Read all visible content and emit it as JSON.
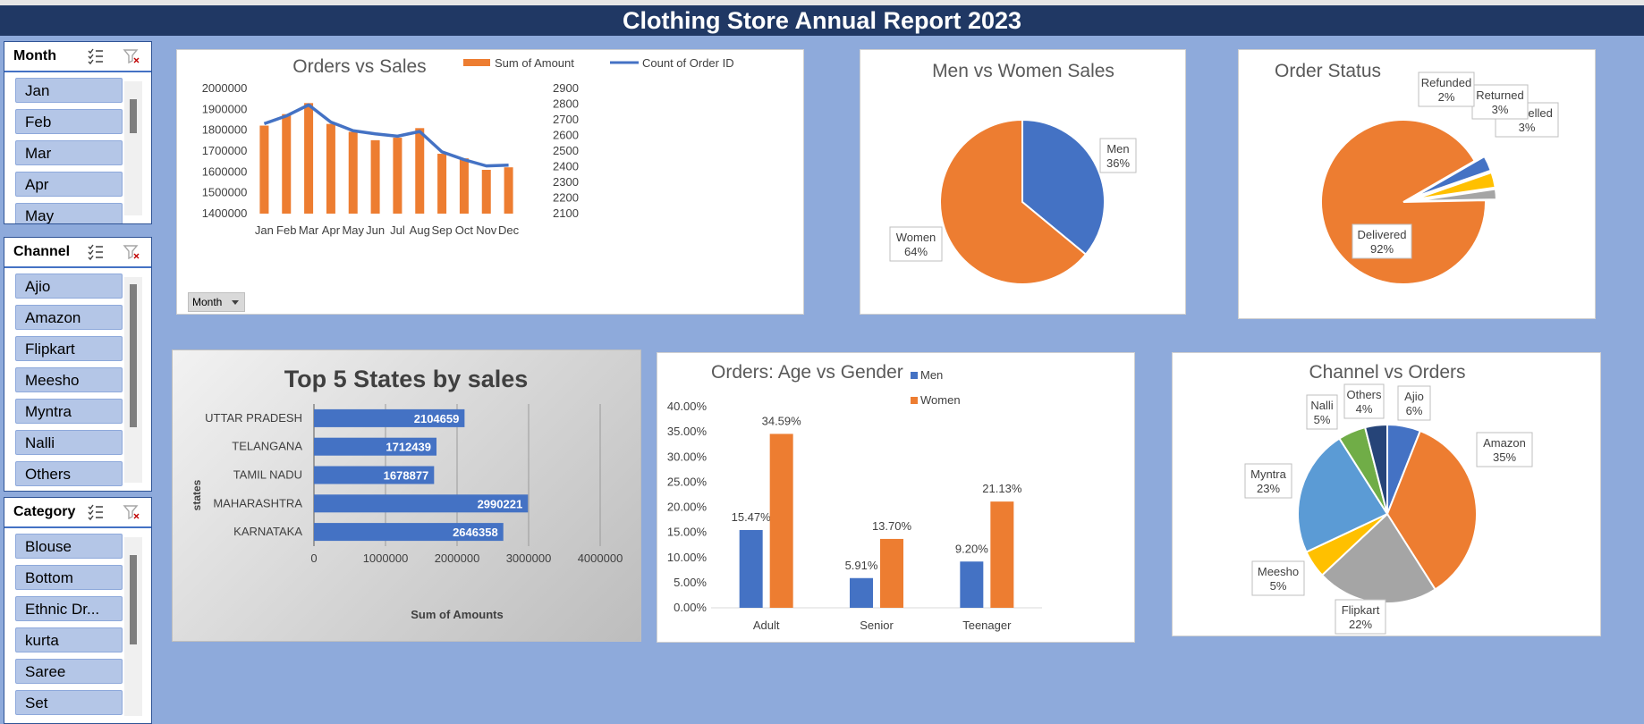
{
  "report": {
    "title": "Clothing Store Annual Report 2023"
  },
  "slicers": {
    "month": {
      "title": "Month",
      "items": [
        "Jan",
        "Feb",
        "Mar",
        "Apr",
        "May"
      ]
    },
    "channel": {
      "title": "Channel",
      "items": [
        "Ajio",
        "Amazon",
        "Flipkart",
        "Meesho",
        "Myntra",
        "Nalli",
        "Others"
      ]
    },
    "category": {
      "title": "Category",
      "items": [
        "Blouse",
        "Bottom",
        "Ethnic Dr...",
        "kurta",
        "Saree",
        "Set"
      ]
    }
  },
  "pivot_button": {
    "label": "Month"
  },
  "colors": {
    "orange": "#ed7d31",
    "blue": "#4472c4",
    "gray": "#a5a5a5",
    "yellow": "#ffc000",
    "lightblue": "#5b9bd5",
    "green": "#70ad47",
    "navy": "#264478",
    "banner": "#203864",
    "background": "#8eaadb"
  },
  "chart_data": [
    {
      "id": "orders_vs_sales",
      "type": "bar",
      "title": "Orders vs Sales",
      "categories": [
        "Jan",
        "Feb",
        "Mar",
        "Apr",
        "May",
        "Jun",
        "Jul",
        "Aug",
        "Sep",
        "Oct",
        "Nov",
        "Dec"
      ],
      "series": [
        {
          "name": "Sum of Amount",
          "type": "bar",
          "axis": "left",
          "values": [
            1822000,
            1877000,
            1930000,
            1830000,
            1792000,
            1752000,
            1764000,
            1810000,
            1687000,
            1665000,
            1610000,
            1622000
          ]
        },
        {
          "name": "Count of Order ID",
          "type": "line",
          "axis": "right",
          "values": [
            2675,
            2725,
            2795,
            2685,
            2630,
            2610,
            2595,
            2625,
            2495,
            2445,
            2405,
            2410
          ]
        }
      ],
      "ylim": [
        1400000,
        2000000
      ],
      "yticks": [
        "2000000",
        "1900000",
        "1800000",
        "1700000",
        "1600000",
        "1500000",
        "1400000"
      ],
      "y2lim": [
        2100,
        2900
      ],
      "y2ticks": [
        "2900",
        "2800",
        "2700",
        "2600",
        "2500",
        "2400",
        "2300",
        "2200",
        "2100"
      ],
      "legend": "top"
    },
    {
      "id": "men_vs_women",
      "type": "pie",
      "title": "Men vs Women Sales",
      "slices": [
        {
          "label": "Men",
          "value": 36,
          "pct": "36%"
        },
        {
          "label": "Women",
          "value": 64,
          "pct": "64%"
        }
      ]
    },
    {
      "id": "order_status",
      "type": "pie",
      "title": "Order Status",
      "slices": [
        {
          "label": "Cancelled",
          "value": 3,
          "pct": "3%"
        },
        {
          "label": "Returned",
          "value": 3,
          "pct": "3%"
        },
        {
          "label": "Refunded",
          "value": 2,
          "pct": "2%"
        },
        {
          "label": "Delivered",
          "value": 92,
          "pct": "92%"
        }
      ]
    },
    {
      "id": "top_states",
      "type": "bar",
      "orientation": "horizontal",
      "title": "Top 5 States by sales",
      "categories": [
        "UTTAR PRADESH",
        "TELANGANA",
        "TAMIL NADU",
        "MAHARASHTRA",
        "KARNATAKA"
      ],
      "values": [
        2104659,
        1712439,
        1678877,
        2990221,
        2646358
      ],
      "xlabel": "Sum of Amounts",
      "ylabel": "states",
      "xlim": [
        0,
        4000000
      ],
      "xticks": [
        "0",
        "1000000",
        "2000000",
        "3000000",
        "4000000"
      ]
    },
    {
      "id": "age_vs_gender",
      "type": "bar",
      "title": "Orders: Age vs Gender",
      "categories": [
        "Adult",
        "Senior",
        "Teenager"
      ],
      "series": [
        {
          "name": "Men",
          "values": [
            15.47,
            5.91,
            9.2
          ],
          "labels": [
            "15.47%",
            "5.91%",
            "9.20%"
          ]
        },
        {
          "name": "Women",
          "values": [
            34.59,
            13.7,
            21.13
          ],
          "labels": [
            "34.59%",
            "13.70%",
            "21.13%"
          ]
        }
      ],
      "ylim": [
        0,
        40
      ],
      "yticks": [
        "40.00%",
        "35.00%",
        "30.00%",
        "25.00%",
        "20.00%",
        "15.00%",
        "10.00%",
        "5.00%",
        "0.00%"
      ]
    },
    {
      "id": "channel_vs_orders",
      "type": "pie",
      "title": "Channel vs Orders",
      "slices": [
        {
          "label": "Ajio",
          "value": 6,
          "pct": "6%"
        },
        {
          "label": "Amazon",
          "value": 35,
          "pct": "35%"
        },
        {
          "label": "Flipkart",
          "value": 22,
          "pct": "22%"
        },
        {
          "label": "Meesho",
          "value": 5,
          "pct": "5%"
        },
        {
          "label": "Myntra",
          "value": 23,
          "pct": "23%"
        },
        {
          "label": "Nalli",
          "value": 5,
          "pct": "5%"
        },
        {
          "label": "Others",
          "value": 4,
          "pct": "4%"
        }
      ]
    }
  ]
}
